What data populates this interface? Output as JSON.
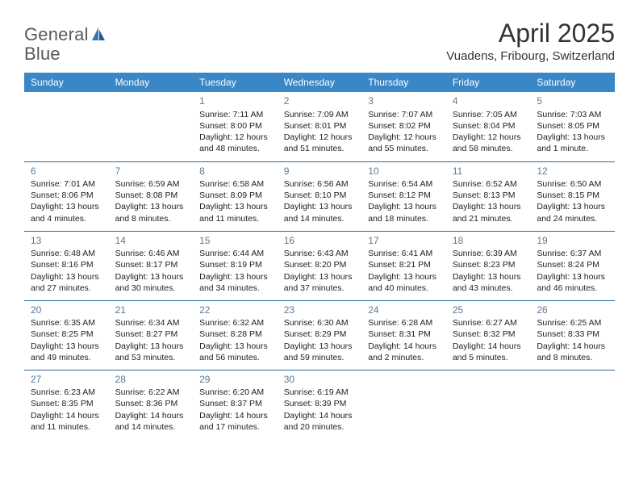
{
  "brand": {
    "word1": "General",
    "word2": "Blue"
  },
  "title": "April 2025",
  "location": "Vuadens, Fribourg, Switzerland",
  "colors": {
    "header_bg": "#3a87c7",
    "header_text": "#ffffff",
    "row_border": "#2f6aa0",
    "daynum": "#5a7a96",
    "body_text": "#222222",
    "logo_blue": "#2f77b5",
    "logo_text": "#555a5f"
  },
  "weekday_labels": [
    "Sunday",
    "Monday",
    "Tuesday",
    "Wednesday",
    "Thursday",
    "Friday",
    "Saturday"
  ],
  "weeks": [
    [
      null,
      null,
      {
        "n": "1",
        "sr": "7:11 AM",
        "ss": "8:00 PM",
        "dl": "12 hours and 48 minutes."
      },
      {
        "n": "2",
        "sr": "7:09 AM",
        "ss": "8:01 PM",
        "dl": "12 hours and 51 minutes."
      },
      {
        "n": "3",
        "sr": "7:07 AM",
        "ss": "8:02 PM",
        "dl": "12 hours and 55 minutes."
      },
      {
        "n": "4",
        "sr": "7:05 AM",
        "ss": "8:04 PM",
        "dl": "12 hours and 58 minutes."
      },
      {
        "n": "5",
        "sr": "7:03 AM",
        "ss": "8:05 PM",
        "dl": "13 hours and 1 minute."
      }
    ],
    [
      {
        "n": "6",
        "sr": "7:01 AM",
        "ss": "8:06 PM",
        "dl": "13 hours and 4 minutes."
      },
      {
        "n": "7",
        "sr": "6:59 AM",
        "ss": "8:08 PM",
        "dl": "13 hours and 8 minutes."
      },
      {
        "n": "8",
        "sr": "6:58 AM",
        "ss": "8:09 PM",
        "dl": "13 hours and 11 minutes."
      },
      {
        "n": "9",
        "sr": "6:56 AM",
        "ss": "8:10 PM",
        "dl": "13 hours and 14 minutes."
      },
      {
        "n": "10",
        "sr": "6:54 AM",
        "ss": "8:12 PM",
        "dl": "13 hours and 18 minutes."
      },
      {
        "n": "11",
        "sr": "6:52 AM",
        "ss": "8:13 PM",
        "dl": "13 hours and 21 minutes."
      },
      {
        "n": "12",
        "sr": "6:50 AM",
        "ss": "8:15 PM",
        "dl": "13 hours and 24 minutes."
      }
    ],
    [
      {
        "n": "13",
        "sr": "6:48 AM",
        "ss": "8:16 PM",
        "dl": "13 hours and 27 minutes."
      },
      {
        "n": "14",
        "sr": "6:46 AM",
        "ss": "8:17 PM",
        "dl": "13 hours and 30 minutes."
      },
      {
        "n": "15",
        "sr": "6:44 AM",
        "ss": "8:19 PM",
        "dl": "13 hours and 34 minutes."
      },
      {
        "n": "16",
        "sr": "6:43 AM",
        "ss": "8:20 PM",
        "dl": "13 hours and 37 minutes."
      },
      {
        "n": "17",
        "sr": "6:41 AM",
        "ss": "8:21 PM",
        "dl": "13 hours and 40 minutes."
      },
      {
        "n": "18",
        "sr": "6:39 AM",
        "ss": "8:23 PM",
        "dl": "13 hours and 43 minutes."
      },
      {
        "n": "19",
        "sr": "6:37 AM",
        "ss": "8:24 PM",
        "dl": "13 hours and 46 minutes."
      }
    ],
    [
      {
        "n": "20",
        "sr": "6:35 AM",
        "ss": "8:25 PM",
        "dl": "13 hours and 49 minutes."
      },
      {
        "n": "21",
        "sr": "6:34 AM",
        "ss": "8:27 PM",
        "dl": "13 hours and 53 minutes."
      },
      {
        "n": "22",
        "sr": "6:32 AM",
        "ss": "8:28 PM",
        "dl": "13 hours and 56 minutes."
      },
      {
        "n": "23",
        "sr": "6:30 AM",
        "ss": "8:29 PM",
        "dl": "13 hours and 59 minutes."
      },
      {
        "n": "24",
        "sr": "6:28 AM",
        "ss": "8:31 PM",
        "dl": "14 hours and 2 minutes."
      },
      {
        "n": "25",
        "sr": "6:27 AM",
        "ss": "8:32 PM",
        "dl": "14 hours and 5 minutes."
      },
      {
        "n": "26",
        "sr": "6:25 AM",
        "ss": "8:33 PM",
        "dl": "14 hours and 8 minutes."
      }
    ],
    [
      {
        "n": "27",
        "sr": "6:23 AM",
        "ss": "8:35 PM",
        "dl": "14 hours and 11 minutes."
      },
      {
        "n": "28",
        "sr": "6:22 AM",
        "ss": "8:36 PM",
        "dl": "14 hours and 14 minutes."
      },
      {
        "n": "29",
        "sr": "6:20 AM",
        "ss": "8:37 PM",
        "dl": "14 hours and 17 minutes."
      },
      {
        "n": "30",
        "sr": "6:19 AM",
        "ss": "8:39 PM",
        "dl": "14 hours and 20 minutes."
      },
      null,
      null,
      null
    ]
  ],
  "labels": {
    "sunrise": "Sunrise: ",
    "sunset": "Sunset: ",
    "daylight": "Daylight: "
  }
}
